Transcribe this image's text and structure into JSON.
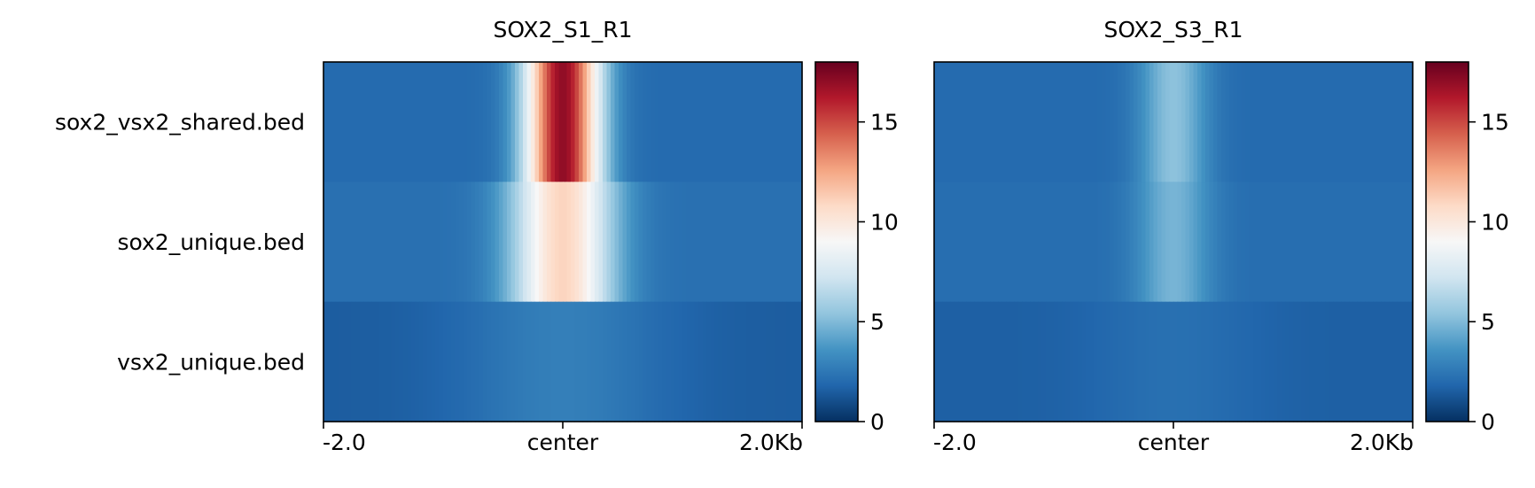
{
  "chart_data": {
    "type": "heatmap",
    "colormap": "RdBu_r",
    "colorbar": {
      "vmin": 0,
      "vmax": 18,
      "ticks": [
        0,
        5,
        10,
        15
      ]
    },
    "x_ticklabels": [
      "-2.0",
      "center",
      "2.0Kb"
    ],
    "rows": [
      "sox2_vsx2_shared.bed",
      "sox2_unique.bed",
      "vsx2_unique.bed"
    ],
    "panels": [
      {
        "title": "SOX2_S1_R1",
        "profiles": [
          {
            "region": "sox2_vsx2_shared.bed",
            "baseline": 2.0,
            "peak": 17.0,
            "width": 0.055
          },
          {
            "region": "sox2_unique.bed",
            "baseline": 2.2,
            "peak": 11.0,
            "width": 0.075
          },
          {
            "region": "vsx2_unique.bed",
            "baseline": 1.5,
            "peak": 2.8,
            "width": 0.15
          }
        ]
      },
      {
        "title": "SOX2_S3_R1",
        "profiles": [
          {
            "region": "sox2_vsx2_shared.bed",
            "baseline": 2.0,
            "peak": 5.3,
            "width": 0.05
          },
          {
            "region": "sox2_unique.bed",
            "baseline": 2.1,
            "peak": 4.8,
            "width": 0.055
          },
          {
            "region": "vsx2_unique.bed",
            "baseline": 1.6,
            "peak": 2.2,
            "width": 0.12
          }
        ]
      }
    ]
  }
}
